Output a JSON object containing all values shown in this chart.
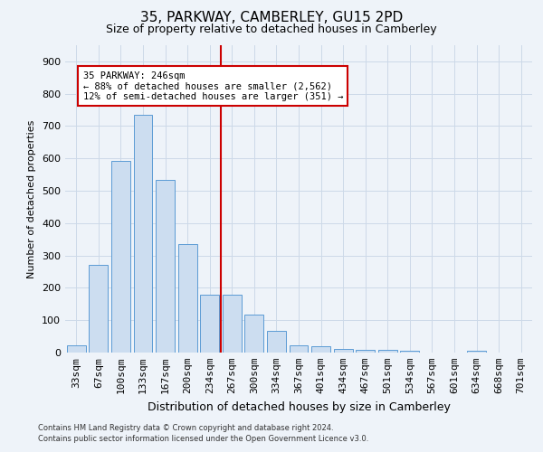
{
  "title1": "35, PARKWAY, CAMBERLEY, GU15 2PD",
  "title2": "Size of property relative to detached houses in Camberley",
  "xlabel": "Distribution of detached houses by size in Camberley",
  "ylabel": "Number of detached properties",
  "categories": [
    "33sqm",
    "67sqm",
    "100sqm",
    "133sqm",
    "167sqm",
    "200sqm",
    "234sqm",
    "267sqm",
    "300sqm",
    "334sqm",
    "367sqm",
    "401sqm",
    "434sqm",
    "467sqm",
    "501sqm",
    "534sqm",
    "567sqm",
    "601sqm",
    "634sqm",
    "668sqm",
    "701sqm"
  ],
  "values": [
    22,
    270,
    592,
    735,
    535,
    335,
    178,
    178,
    118,
    68,
    22,
    20,
    12,
    8,
    7,
    5,
    0,
    0,
    5,
    0,
    0
  ],
  "bar_color": "#ccddf0",
  "bar_edge_color": "#5b9bd5",
  "grid_color": "#ccd9e8",
  "vline_x": 6.5,
  "vline_color": "#cc0000",
  "annotation_text": "35 PARKWAY: 246sqm\n← 88% of detached houses are smaller (2,562)\n12% of semi-detached houses are larger (351) →",
  "annotation_box_color": "#ffffff",
  "annotation_box_edge_color": "#cc0000",
  "ylim": [
    0,
    950
  ],
  "yticks": [
    0,
    100,
    200,
    300,
    400,
    500,
    600,
    700,
    800,
    900
  ],
  "footer1": "Contains HM Land Registry data © Crown copyright and database right 2024.",
  "footer2": "Contains public sector information licensed under the Open Government Licence v3.0.",
  "bg_color": "#eef3f9",
  "plot_bg_color": "#eef3f9",
  "title1_fontsize": 11,
  "title2_fontsize": 9,
  "ylabel_fontsize": 8,
  "xlabel_fontsize": 9,
  "tick_fontsize": 8,
  "footer_fontsize": 6,
  "ann_fontsize": 7.5
}
